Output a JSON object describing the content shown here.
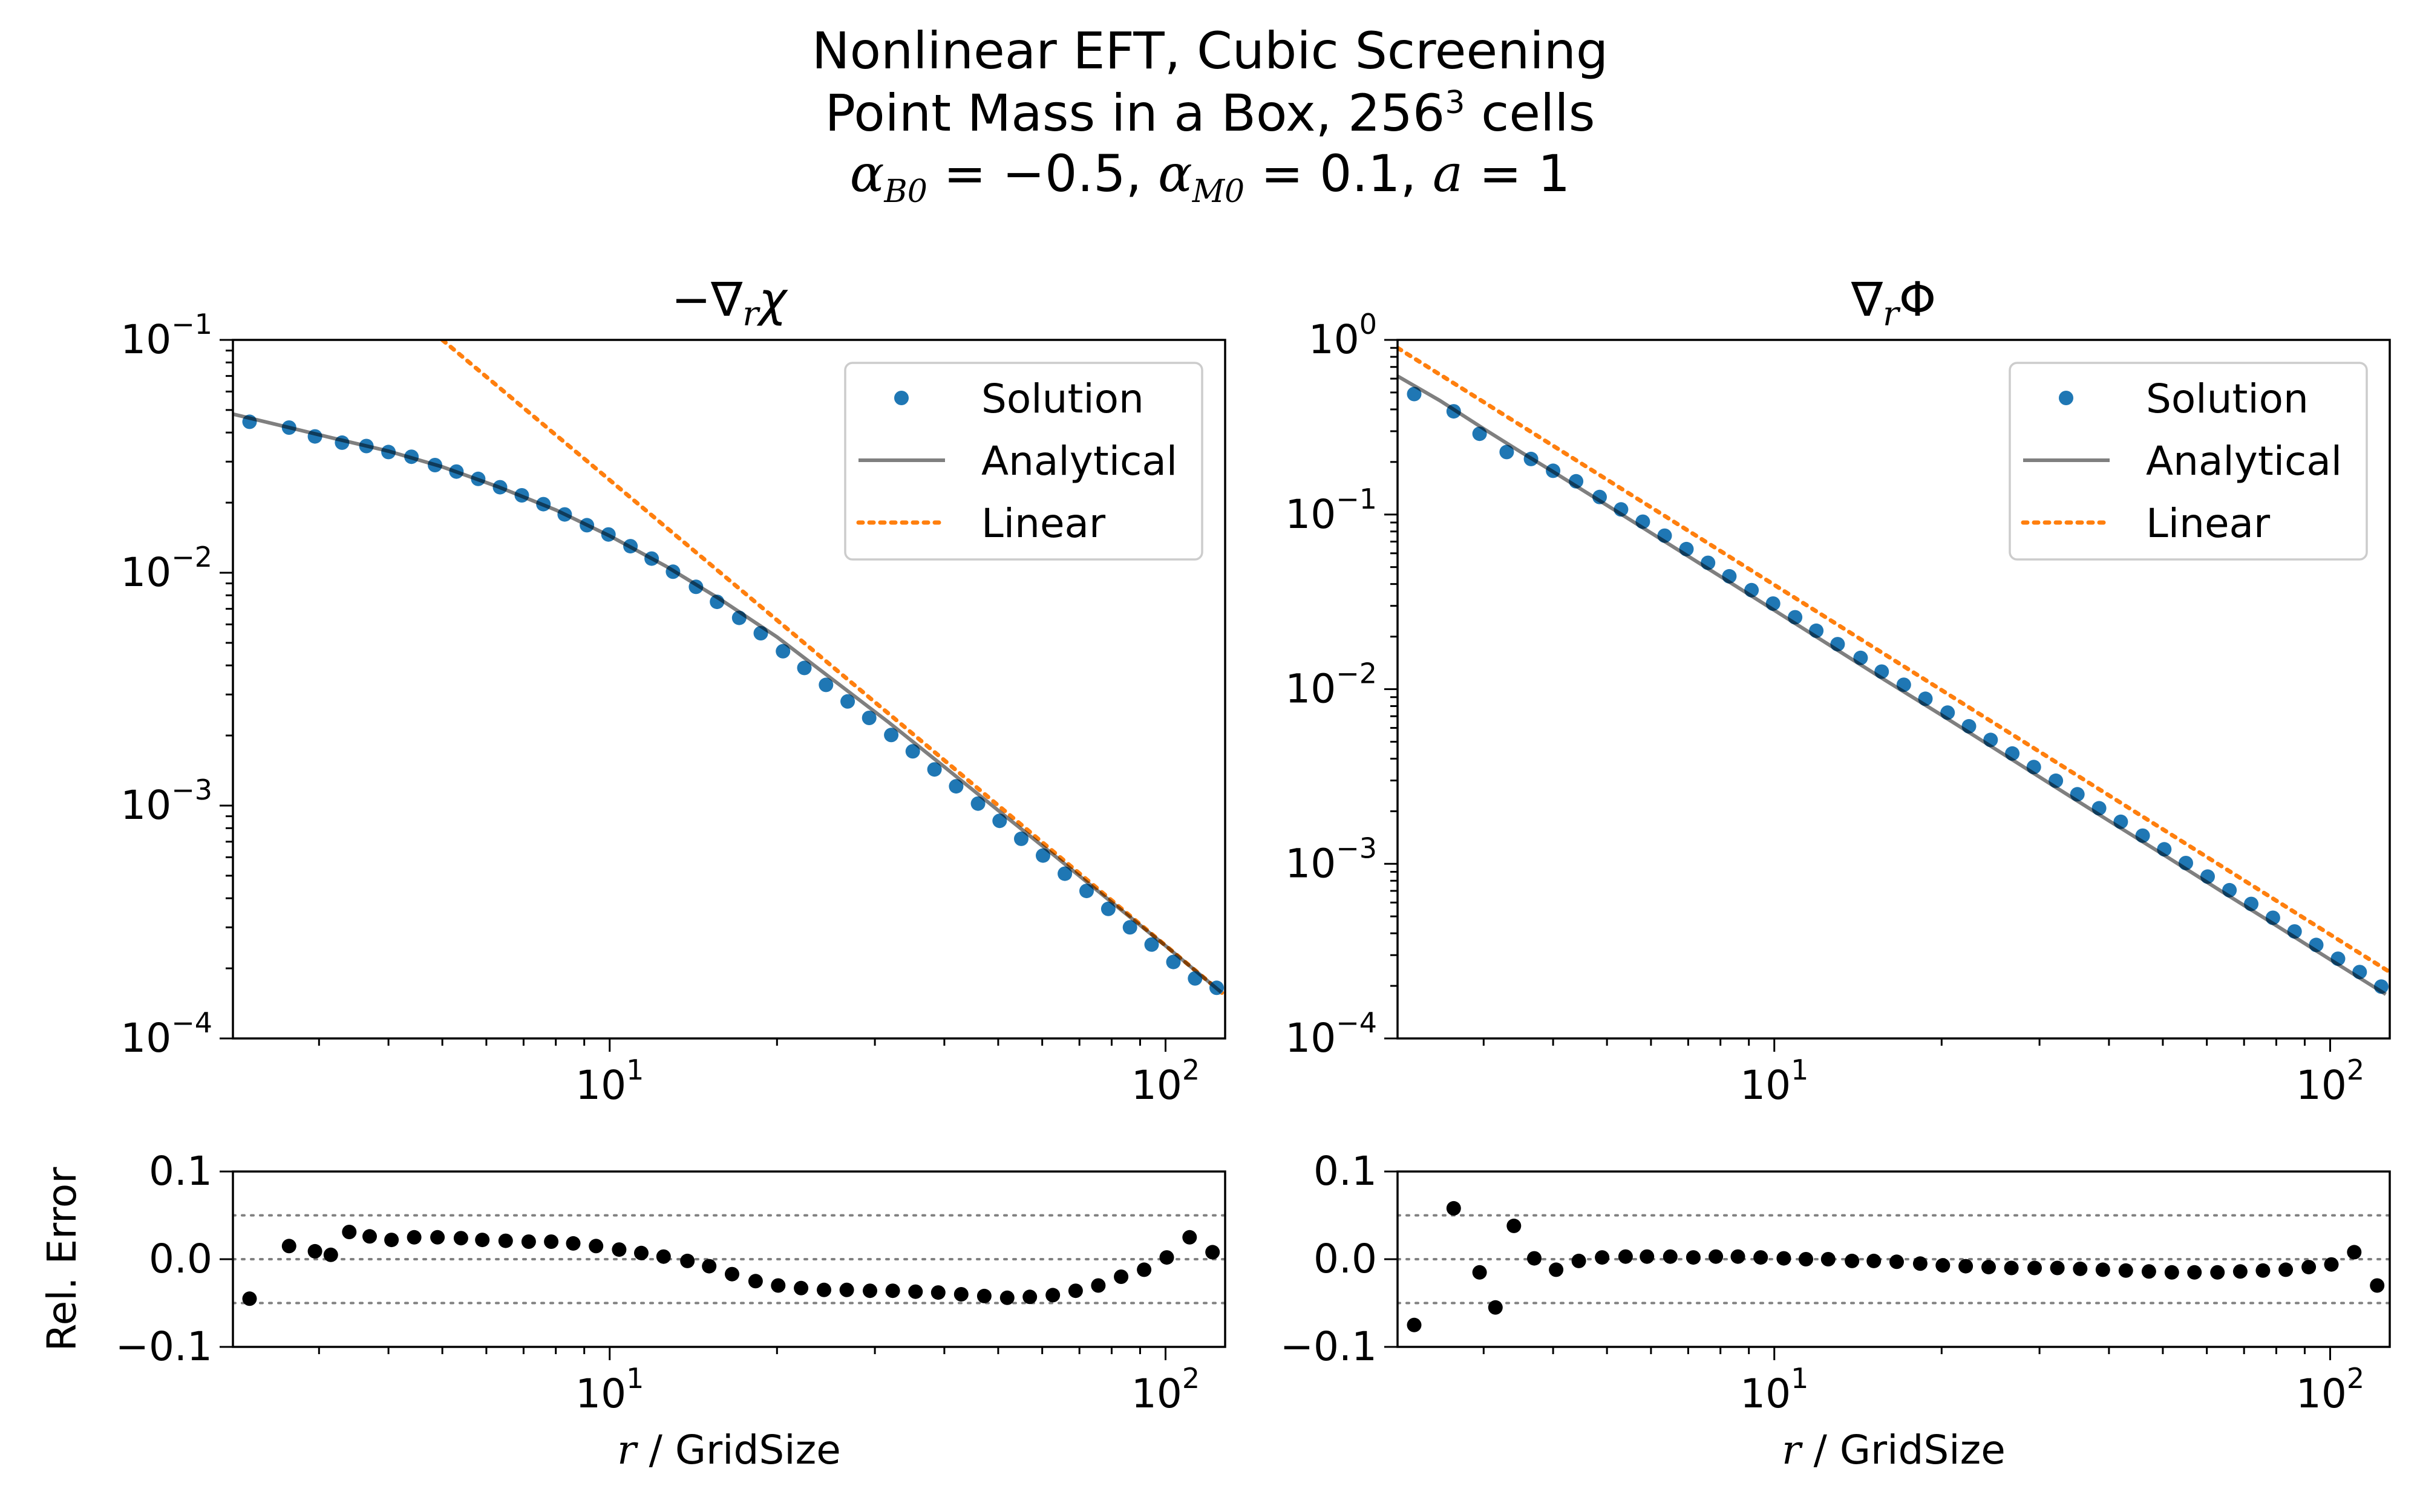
{
  "figure": {
    "title_line1": "Nonlinear EFT, Cubic Screening",
    "title_line2_prefix": "Point Mass in a Box, 256",
    "title_line2_exp": "3",
    "title_line2_suffix": " cells",
    "title_line3": {
      "alpha": "α",
      "b_sub": "B0",
      "b_val": " = −0.5, ",
      "m_sub": "M0",
      "m_val": " = 0.1, ",
      "a_sym": "a",
      "a_val": " = 1"
    }
  },
  "chart_data": [
    {
      "id": "chi_main",
      "type": "line",
      "title": "−∇rχ",
      "xscale": "log",
      "yscale": "log",
      "xlim": [
        2.1,
        128
      ],
      "ylim": [
        0.0001,
        0.1
      ],
      "xticks": [
        {
          "v": 10,
          "label": "10",
          "exp": "1"
        },
        {
          "v": 100,
          "label": "10",
          "exp": "2"
        }
      ],
      "yticks": [
        {
          "v": 0.1,
          "label": "10",
          "exp": "−1"
        },
        {
          "v": 0.01,
          "label": "10",
          "exp": "−2"
        },
        {
          "v": 0.001,
          "label": "10",
          "exp": "−3"
        },
        {
          "v": 0.0001,
          "label": "10",
          "exp": "−4"
        }
      ],
      "legend_position": "top-right",
      "legend": [
        "Solution",
        "Analytical",
        "Linear"
      ],
      "colors": {
        "solution": "#1f77b4",
        "analytical": "#808080",
        "linear": "#ff7f0e"
      },
      "series": [
        {
          "name": "Solution",
          "kind": "markers",
          "x": [
            2.25,
            2.65,
            2.95,
            3.3,
            3.65,
            4.0,
            4.4,
            4.85,
            5.3,
            5.8,
            6.35,
            6.95,
            7.6,
            8.3,
            9.1,
            9.95,
            10.9,
            11.9,
            13.0,
            14.3,
            15.6,
            17.1,
            18.7,
            20.5,
            22.4,
            24.5,
            26.8,
            29.3,
            32.1,
            35.1,
            38.4,
            42.0,
            46.0,
            50.3,
            55.0,
            60.2,
            65.9,
            72.1,
            78.9,
            86.3,
            94.4,
            103.3,
            113.0,
            123.6
          ],
          "y": [
            0.0445,
            0.042,
            0.0385,
            0.0362,
            0.035,
            0.033,
            0.0315,
            0.029,
            0.0272,
            0.0253,
            0.0233,
            0.0215,
            0.0197,
            0.0178,
            0.016,
            0.0146,
            0.013,
            0.0115,
            0.0101,
            0.0087,
            0.0075,
            0.0064,
            0.0055,
            0.0046,
            0.0039,
            0.0033,
            0.0028,
            0.00238,
            0.00201,
            0.00171,
            0.00143,
            0.00121,
            0.00102,
            0.00086,
            0.00072,
            0.00061,
            0.00051,
            0.00043,
            0.00036,
            0.0003,
            0.000253,
            0.000213,
            0.000181,
            0.000165
          ]
        },
        {
          "name": "Analytical",
          "kind": "line",
          "x": [
            2.1,
            2.6,
            3.2,
            4.0,
            5.0,
            6.3,
            8.0,
            10.0,
            12.6,
            15.8,
            20.0,
            25.1,
            31.6,
            39.8,
            50.1,
            63.1,
            79.4,
            100.0,
            125.9
          ],
          "y": [
            0.048,
            0.0425,
            0.0377,
            0.0333,
            0.0285,
            0.0234,
            0.0186,
            0.0144,
            0.0107,
            0.0077,
            0.0053,
            0.0035,
            0.0023,
            0.00148,
            0.00095,
            0.00061,
            0.00039,
            0.00025,
            0.000158
          ]
        },
        {
          "name": "Linear",
          "kind": "dotted",
          "x": [
            5.0,
            128.0
          ],
          "y": [
            0.1,
            0.000153
          ]
        }
      ]
    },
    {
      "id": "phi_main",
      "type": "line",
      "title": "∇rΦ",
      "xscale": "log",
      "yscale": "log",
      "xlim": [
        2.1,
        128
      ],
      "ylim": [
        0.0001,
        1.0
      ],
      "xticks": [
        {
          "v": 10,
          "label": "10",
          "exp": "1"
        },
        {
          "v": 100,
          "label": "10",
          "exp": "2"
        }
      ],
      "yticks": [
        {
          "v": 1.0,
          "label": "10",
          "exp": "0"
        },
        {
          "v": 0.1,
          "label": "10",
          "exp": "−1"
        },
        {
          "v": 0.01,
          "label": "10",
          "exp": "−2"
        },
        {
          "v": 0.001,
          "label": "10",
          "exp": "−3"
        },
        {
          "v": 0.0001,
          "label": "10",
          "exp": "−4"
        }
      ],
      "legend_position": "top-right",
      "legend": [
        "Solution",
        "Analytical",
        "Linear"
      ],
      "colors": {
        "solution": "#1f77b4",
        "analytical": "#808080",
        "linear": "#ff7f0e"
      },
      "series": [
        {
          "name": "Solution",
          "kind": "markers",
          "x": [
            2.25,
            2.65,
            2.95,
            3.3,
            3.65,
            4.0,
            4.4,
            4.85,
            5.3,
            5.8,
            6.35,
            6.95,
            7.6,
            8.3,
            9.1,
            9.95,
            10.9,
            11.9,
            13.0,
            14.3,
            15.6,
            17.1,
            18.7,
            20.5,
            22.4,
            24.5,
            26.8,
            29.3,
            32.1,
            35.1,
            38.4,
            42.0,
            46.0,
            50.3,
            55.0,
            60.2,
            65.9,
            72.1,
            78.9,
            86.3,
            94.4,
            103.3,
            113.0,
            123.6
          ],
          "y": [
            0.49,
            0.39,
            0.29,
            0.228,
            0.208,
            0.178,
            0.155,
            0.126,
            0.107,
            0.091,
            0.0757,
            0.0634,
            0.0529,
            0.0443,
            0.0369,
            0.0309,
            0.0258,
            0.0216,
            0.0181,
            0.0151,
            0.0126,
            0.0106,
            0.00881,
            0.00734,
            0.00613,
            0.00512,
            0.00428,
            0.00358,
            0.00299,
            0.0025,
            0.00208,
            0.00174,
            0.00145,
            0.00121,
            0.00101,
            0.000845,
            0.000706,
            0.000589,
            0.000491,
            0.00041,
            0.000343,
            0.000286,
            0.00024,
            0.000198
          ]
        },
        {
          "name": "Analytical",
          "kind": "line",
          "x": [
            2.1,
            2.5,
            3.0,
            3.5,
            4.0,
            5.0,
            6.3,
            8.0,
            10.0,
            12.6,
            15.8,
            20.0,
            25.1,
            31.6,
            39.8,
            50.1,
            63.1,
            79.4,
            100.0,
            125.9
          ],
          "y": [
            0.62,
            0.45,
            0.31,
            0.228,
            0.176,
            0.113,
            0.0712,
            0.0442,
            0.0283,
            0.0178,
            0.0113,
            0.0071,
            0.0045,
            0.00283,
            0.00178,
            0.00113,
            0.00071,
            0.00045,
            0.000283,
            0.000179
          ]
        },
        {
          "name": "Linear",
          "kind": "dotted",
          "x": [
            2.1,
            128.0
          ],
          "y": [
            0.9,
            0.00024
          ]
        }
      ]
    },
    {
      "id": "chi_err",
      "type": "scatter",
      "ylabel": "Rel. Error",
      "xlabel_var": "r",
      "xlabel_rest": " / GridSize",
      "xscale": "log",
      "xlim": [
        2.1,
        128
      ],
      "ylim": [
        -0.1,
        0.1
      ],
      "xticks": [
        {
          "v": 10,
          "label": "10",
          "exp": "1"
        },
        {
          "v": 100,
          "label": "10",
          "exp": "2"
        }
      ],
      "yticks": [
        {
          "v": 0.1,
          "label": "0.1"
        },
        {
          "v": 0.0,
          "label": "0.0"
        },
        {
          "v": -0.1,
          "label": "−0.1"
        }
      ],
      "hlines": [
        0.05,
        0.0,
        -0.05
      ],
      "series": [
        {
          "name": "",
          "x": [
            2.25,
            2.65,
            2.95,
            3.15,
            3.4,
            3.7,
            4.05,
            4.45,
            4.9,
            5.4,
            5.9,
            6.5,
            7.15,
            7.85,
            8.6,
            9.45,
            10.4,
            11.4,
            12.5,
            13.8,
            15.1,
            16.6,
            18.3,
            20.1,
            22.1,
            24.3,
            26.7,
            29.4,
            32.3,
            35.5,
            39.0,
            42.9,
            47.2,
            51.9,
            57.0,
            62.7,
            68.9,
            75.7,
            83.2,
            91.5,
            100.5,
            110.5,
            121.5
          ],
          "y": [
            -0.045,
            0.015,
            0.009,
            0.005,
            0.031,
            0.026,
            0.022,
            0.025,
            0.025,
            0.024,
            0.022,
            0.021,
            0.02,
            0.02,
            0.018,
            0.015,
            0.011,
            0.007,
            0.003,
            -0.002,
            -0.008,
            -0.017,
            -0.025,
            -0.03,
            -0.033,
            -0.035,
            -0.035,
            -0.036,
            -0.036,
            -0.037,
            -0.038,
            -0.04,
            -0.042,
            -0.044,
            -0.043,
            -0.041,
            -0.036,
            -0.03,
            -0.02,
            -0.012,
            0.002,
            0.025,
            0.008
          ]
        }
      ]
    },
    {
      "id": "phi_err",
      "type": "scatter",
      "xlabel_var": "r",
      "xlabel_rest": " / GridSize",
      "xscale": "log",
      "xlim": [
        2.1,
        128
      ],
      "ylim": [
        -0.1,
        0.1
      ],
      "xticks": [
        {
          "v": 10,
          "label": "10",
          "exp": "1"
        },
        {
          "v": 100,
          "label": "10",
          "exp": "2"
        }
      ],
      "yticks": [
        {
          "v": 0.1,
          "label": "0.1"
        },
        {
          "v": 0.0,
          "label": "0.0"
        },
        {
          "v": -0.1,
          "label": "−0.1"
        }
      ],
      "hlines": [
        0.05,
        0.0,
        -0.05
      ],
      "series": [
        {
          "name": "",
          "x": [
            2.25,
            2.65,
            2.95,
            3.15,
            3.4,
            3.7,
            4.05,
            4.45,
            4.9,
            5.4,
            5.9,
            6.5,
            7.15,
            7.85,
            8.6,
            9.45,
            10.4,
            11.4,
            12.5,
            13.8,
            15.1,
            16.6,
            18.3,
            20.1,
            22.1,
            24.3,
            26.7,
            29.4,
            32.3,
            35.5,
            39.0,
            42.9,
            47.2,
            51.9,
            57.0,
            62.7,
            68.9,
            75.7,
            83.2,
            91.5,
            100.5,
            110.5,
            121.5
          ],
          "y": [
            -0.075,
            0.058,
            -0.015,
            -0.055,
            0.038,
            0.001,
            -0.012,
            -0.002,
            0.002,
            0.003,
            0.003,
            0.003,
            0.002,
            0.003,
            0.003,
            0.002,
            0.001,
            0.0,
            0.0,
            -0.002,
            -0.002,
            -0.003,
            -0.005,
            -0.007,
            -0.008,
            -0.009,
            -0.01,
            -0.01,
            -0.01,
            -0.011,
            -0.012,
            -0.013,
            -0.014,
            -0.015,
            -0.015,
            -0.015,
            -0.014,
            -0.013,
            -0.012,
            -0.009,
            -0.006,
            0.008,
            -0.03
          ]
        }
      ]
    }
  ]
}
